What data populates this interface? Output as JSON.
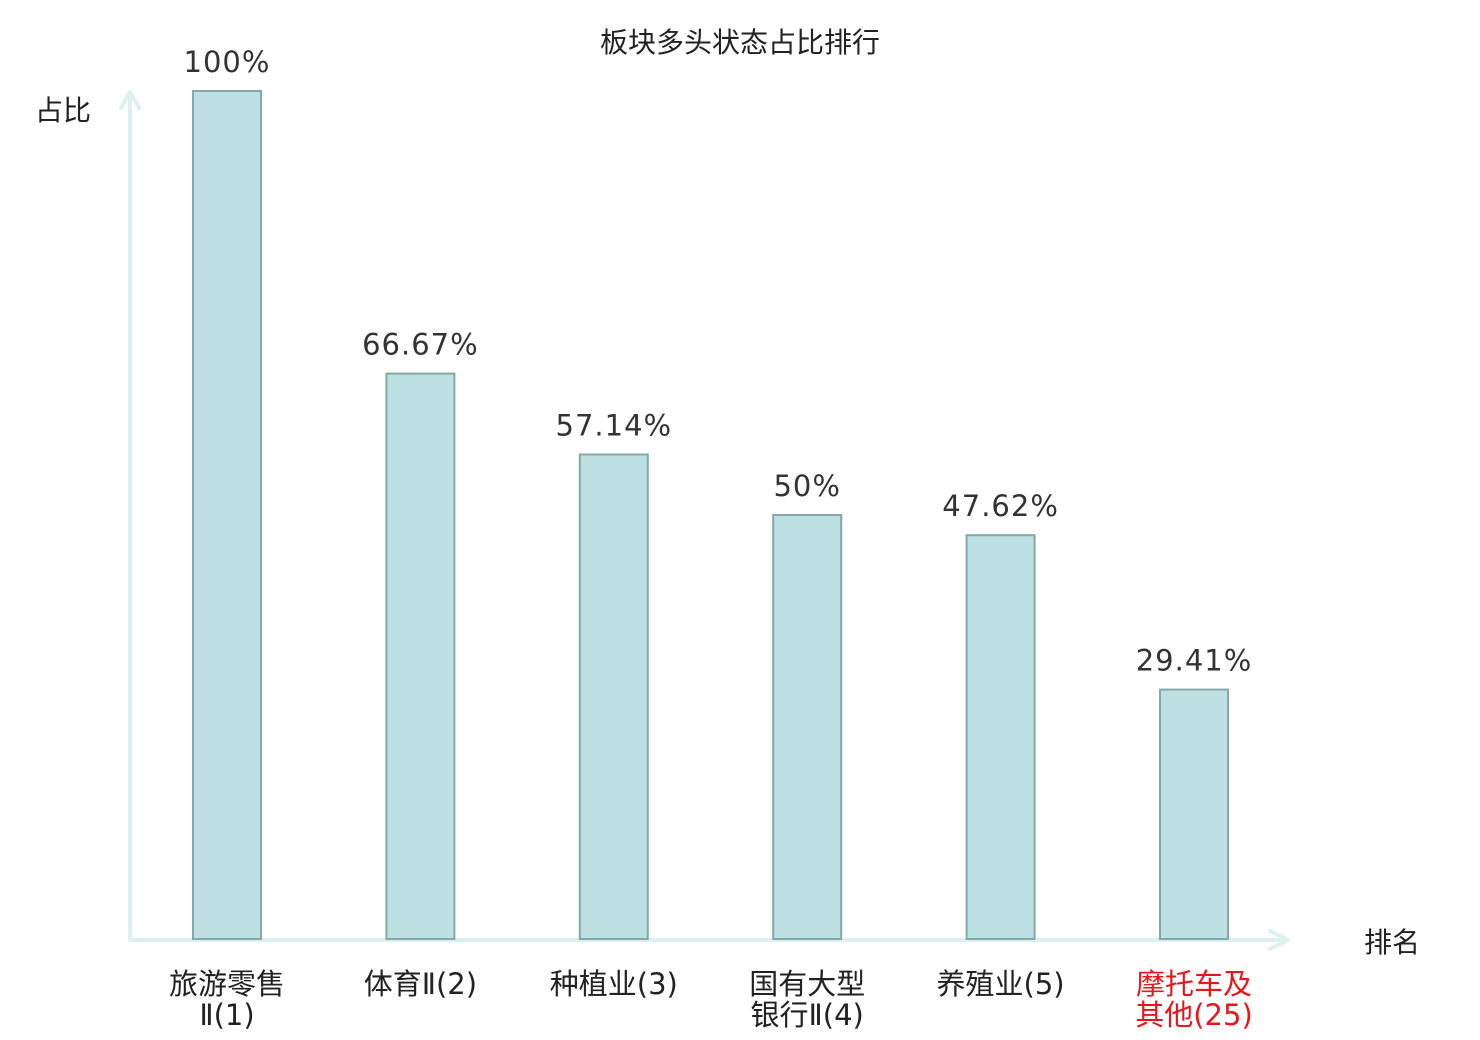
{
  "chart_data": {
    "type": "bar",
    "title": "板块多头状态占比排行",
    "ylabel": "占比",
    "xlabel": "排名",
    "ylim": [
      0,
      100
    ],
    "categories": [
      [
        "旅游零售",
        "Ⅱ(1)"
      ],
      [
        "体育Ⅱ(2)"
      ],
      [
        "种植业(3)"
      ],
      [
        "国有大型",
        "银行Ⅱ(4)"
      ],
      [
        "养殖业(5)"
      ],
      [
        "摩托车及",
        "其他(25)"
      ]
    ],
    "values": [
      100,
      66.67,
      57.14,
      50,
      47.62,
      29.41
    ],
    "value_labels": [
      "100%",
      "66.67%",
      "57.14%",
      "50%",
      "47.62%",
      "29.41%"
    ],
    "highlight_index": 5,
    "colors": {
      "bar_fill": "#bde0e2",
      "bar_stroke": "#86a7a9",
      "axis": "#dcf1ee",
      "highlight_text": "#e8161b"
    },
    "grid": false
  }
}
